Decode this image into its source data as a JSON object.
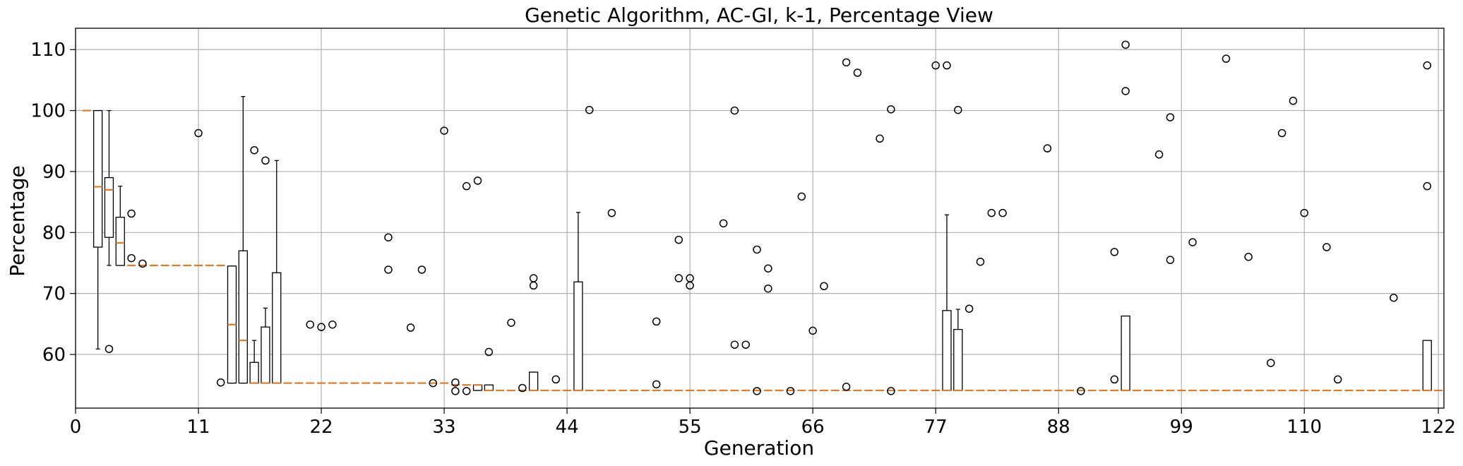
{
  "chart_data": {
    "type": "box",
    "title": "Genetic Algorithm, AC-GI, k-1, Percentage View",
    "xlabel": "Generation",
    "ylabel": "Percentage",
    "xlim": [
      0,
      122.5
    ],
    "ylim": [
      51.2,
      113.5
    ],
    "xticks": [
      0,
      11,
      22,
      33,
      44,
      55,
      66,
      77,
      88,
      99,
      110,
      122
    ],
    "yticks": [
      60,
      70,
      80,
      90,
      100,
      110
    ],
    "grid": true,
    "colors": {
      "box": "#000000",
      "median": "#e07b27",
      "grid": "#b0b0b0"
    },
    "boxes": [
      {
        "x": 2,
        "q1": 77.6,
        "q3": 100,
        "median": 87.5,
        "whisker_low": 60.9,
        "whisker_high": 100
      },
      {
        "x": 3,
        "q1": 79.2,
        "q3": 89.0,
        "median": 87.0,
        "whisker_low": 74.6,
        "whisker_high": 100
      },
      {
        "x": 4,
        "q1": 74.6,
        "q3": 82.5,
        "median": 78.3,
        "whisker_low": 74.6,
        "whisker_high": 87.6
      },
      {
        "x": 14,
        "q1": 55.3,
        "q3": 74.5,
        "median": 64.9,
        "whisker_low": 55.3,
        "whisker_high": 74.5
      },
      {
        "x": 15,
        "q1": 55.3,
        "q3": 77.0,
        "median": 62.3,
        "whisker_low": 55.3,
        "whisker_high": 102.3
      },
      {
        "x": 16,
        "q1": 55.3,
        "q3": 58.7,
        "median": 55.3,
        "whisker_low": 55.3,
        "whisker_high": 62.3
      },
      {
        "x": 17,
        "q1": 55.3,
        "q3": 64.5,
        "median": 55.3,
        "whisker_low": 55.3,
        "whisker_high": 67.6
      },
      {
        "x": 18,
        "q1": 55.3,
        "q3": 73.4,
        "median": 55.3,
        "whisker_low": 55.3,
        "whisker_high": 91.8
      },
      {
        "x": 36,
        "q1": 54.1,
        "q3": 55.0,
        "median": 55.0,
        "whisker_low": 54.1,
        "whisker_high": 55.0
      },
      {
        "x": 37,
        "q1": 54.1,
        "q3": 55.0,
        "median": 54.1,
        "whisker_low": 54.1,
        "whisker_high": 55.0
      },
      {
        "x": 41,
        "q1": 54.1,
        "q3": 57.1,
        "median": 54.1,
        "whisker_low": 54.1,
        "whisker_high": 57.1
      },
      {
        "x": 45,
        "q1": 54.1,
        "q3": 71.9,
        "median": 54.1,
        "whisker_low": 54.1,
        "whisker_high": 83.3
      },
      {
        "x": 78,
        "q1": 54.1,
        "q3": 67.2,
        "median": 54.1,
        "whisker_low": 54.1,
        "whisker_high": 82.9
      },
      {
        "x": 79,
        "q1": 54.1,
        "q3": 64.1,
        "median": 54.1,
        "whisker_low": 54.1,
        "whisker_high": 67.4
      },
      {
        "x": 94,
        "q1": 54.1,
        "q3": 66.3,
        "median": 54.1,
        "whisker_low": 54.1,
        "whisker_high": 66.3
      },
      {
        "x": 121,
        "q1": 54.1,
        "q3": 62.3,
        "median": 54.1,
        "whisker_low": 54.1,
        "whisker_high": 62.3
      }
    ],
    "flat_medians": [
      {
        "x": 1,
        "value": 100
      },
      {
        "x": 5,
        "value": 74.6
      },
      {
        "x": 6,
        "value": 74.6
      },
      {
        "x": 7,
        "value": 74.6
      },
      {
        "x": 8,
        "value": 74.6
      },
      {
        "x": 9,
        "value": 74.6
      },
      {
        "x": 10,
        "value": 74.6
      },
      {
        "x": 11,
        "value": 74.6
      },
      {
        "x": 12,
        "value": 74.6
      },
      {
        "x": 13,
        "value": 74.6
      },
      {
        "x": 19,
        "value": 55.3
      },
      {
        "x": 20,
        "value": 55.3
      },
      {
        "x": 21,
        "value": 55.3
      },
      {
        "x": 22,
        "value": 55.3
      },
      {
        "x": 23,
        "value": 55.3
      },
      {
        "x": 24,
        "value": 55.3
      },
      {
        "x": 25,
        "value": 55.3
      },
      {
        "x": 26,
        "value": 55.3
      },
      {
        "x": 27,
        "value": 55.3
      },
      {
        "x": 28,
        "value": 55.3
      },
      {
        "x": 29,
        "value": 55.3
      },
      {
        "x": 30,
        "value": 55.3
      },
      {
        "x": 31,
        "value": 55.3
      },
      {
        "x": 32,
        "value": 55.3
      },
      {
        "x": 33,
        "value": 55.3
      },
      {
        "x": 34,
        "value": 55.0
      },
      {
        "x": 35,
        "value": 55.0
      },
      {
        "x": 38,
        "value": 54.1
      },
      {
        "x": 39,
        "value": 54.1
      },
      {
        "x": 40,
        "value": 54.1
      },
      {
        "x": 42,
        "value": 54.1
      },
      {
        "x": 43,
        "value": 54.1
      },
      {
        "x": 44,
        "value": 54.1
      },
      {
        "x": 46,
        "value": 54.1
      },
      {
        "x": 47,
        "value": 54.1
      },
      {
        "x": 48,
        "value": 54.1
      },
      {
        "x": 49,
        "value": 54.1
      },
      {
        "x": 50,
        "value": 54.1
      },
      {
        "x": 51,
        "value": 54.1
      },
      {
        "x": 52,
        "value": 54.1
      },
      {
        "x": 53,
        "value": 54.1
      },
      {
        "x": 54,
        "value": 54.1
      },
      {
        "x": 55,
        "value": 54.1
      },
      {
        "x": 56,
        "value": 54.1
      },
      {
        "x": 57,
        "value": 54.1
      },
      {
        "x": 58,
        "value": 54.1
      },
      {
        "x": 59,
        "value": 54.1
      },
      {
        "x": 60,
        "value": 54.1
      },
      {
        "x": 61,
        "value": 54.1
      },
      {
        "x": 62,
        "value": 54.1
      },
      {
        "x": 63,
        "value": 54.1
      },
      {
        "x": 64,
        "value": 54.1
      },
      {
        "x": 65,
        "value": 54.1
      },
      {
        "x": 66,
        "value": 54.1
      },
      {
        "x": 67,
        "value": 54.1
      },
      {
        "x": 68,
        "value": 54.1
      },
      {
        "x": 69,
        "value": 54.1
      },
      {
        "x": 70,
        "value": 54.1
      },
      {
        "x": 71,
        "value": 54.1
      },
      {
        "x": 72,
        "value": 54.1
      },
      {
        "x": 73,
        "value": 54.1
      },
      {
        "x": 74,
        "value": 54.1
      },
      {
        "x": 75,
        "value": 54.1
      },
      {
        "x": 76,
        "value": 54.1
      },
      {
        "x": 77,
        "value": 54.1
      },
      {
        "x": 80,
        "value": 54.1
      },
      {
        "x": 81,
        "value": 54.1
      },
      {
        "x": 82,
        "value": 54.1
      },
      {
        "x": 83,
        "value": 54.1
      },
      {
        "x": 84,
        "value": 54.1
      },
      {
        "x": 85,
        "value": 54.1
      },
      {
        "x": 86,
        "value": 54.1
      },
      {
        "x": 87,
        "value": 54.1
      },
      {
        "x": 88,
        "value": 54.1
      },
      {
        "x": 89,
        "value": 54.1
      },
      {
        "x": 90,
        "value": 54.1
      },
      {
        "x": 91,
        "value": 54.1
      },
      {
        "x": 92,
        "value": 54.1
      },
      {
        "x": 93,
        "value": 54.1
      },
      {
        "x": 95,
        "value": 54.1
      },
      {
        "x": 96,
        "value": 54.1
      },
      {
        "x": 97,
        "value": 54.1
      },
      {
        "x": 98,
        "value": 54.1
      },
      {
        "x": 99,
        "value": 54.1
      },
      {
        "x": 100,
        "value": 54.1
      },
      {
        "x": 101,
        "value": 54.1
      },
      {
        "x": 102,
        "value": 54.1
      },
      {
        "x": 103,
        "value": 54.1
      },
      {
        "x": 104,
        "value": 54.1
      },
      {
        "x": 105,
        "value": 54.1
      },
      {
        "x": 106,
        "value": 54.1
      },
      {
        "x": 107,
        "value": 54.1
      },
      {
        "x": 108,
        "value": 54.1
      },
      {
        "x": 109,
        "value": 54.1
      },
      {
        "x": 110,
        "value": 54.1
      },
      {
        "x": 111,
        "value": 54.1
      },
      {
        "x": 112,
        "value": 54.1
      },
      {
        "x": 113,
        "value": 54.1
      },
      {
        "x": 114,
        "value": 54.1
      },
      {
        "x": 115,
        "value": 54.1
      },
      {
        "x": 116,
        "value": 54.1
      },
      {
        "x": 117,
        "value": 54.1
      },
      {
        "x": 118,
        "value": 54.1
      },
      {
        "x": 119,
        "value": 54.1
      },
      {
        "x": 120,
        "value": 54.1
      },
      {
        "x": 122,
        "value": 54.1
      }
    ],
    "outliers": [
      {
        "x": 3,
        "y": 60.9
      },
      {
        "x": 5,
        "y": 83.1
      },
      {
        "x": 5,
        "y": 75.8
      },
      {
        "x": 6,
        "y": 74.9
      },
      {
        "x": 11,
        "y": 96.3
      },
      {
        "x": 13,
        "y": 55.4
      },
      {
        "x": 16,
        "y": 93.5
      },
      {
        "x": 17,
        "y": 91.8
      },
      {
        "x": 21,
        "y": 64.9
      },
      {
        "x": 22,
        "y": 64.5
      },
      {
        "x": 23,
        "y": 64.9
      },
      {
        "x": 28,
        "y": 79.2
      },
      {
        "x": 28,
        "y": 73.9
      },
      {
        "x": 30,
        "y": 64.4
      },
      {
        "x": 31,
        "y": 73.9
      },
      {
        "x": 33,
        "y": 96.7
      },
      {
        "x": 32,
        "y": 55.3
      },
      {
        "x": 34,
        "y": 55.4
      },
      {
        "x": 34,
        "y": 54.0
      },
      {
        "x": 35,
        "y": 54.0
      },
      {
        "x": 35,
        "y": 87.6
      },
      {
        "x": 36,
        "y": 88.5
      },
      {
        "x": 37,
        "y": 60.4
      },
      {
        "x": 39,
        "y": 65.2
      },
      {
        "x": 40,
        "y": 54.5
      },
      {
        "x": 41,
        "y": 72.5
      },
      {
        "x": 41,
        "y": 71.3
      },
      {
        "x": 43,
        "y": 55.9
      },
      {
        "x": 46,
        "y": 100.1
      },
      {
        "x": 48,
        "y": 83.2
      },
      {
        "x": 52,
        "y": 65.4
      },
      {
        "x": 52,
        "y": 55.1
      },
      {
        "x": 54,
        "y": 78.8
      },
      {
        "x": 54,
        "y": 72.5
      },
      {
        "x": 55,
        "y": 72.5
      },
      {
        "x": 55,
        "y": 71.3
      },
      {
        "x": 58,
        "y": 81.5
      },
      {
        "x": 59,
        "y": 100.0
      },
      {
        "x": 59,
        "y": 61.6
      },
      {
        "x": 60,
        "y": 61.6
      },
      {
        "x": 61,
        "y": 77.2
      },
      {
        "x": 61,
        "y": 54.0
      },
      {
        "x": 62,
        "y": 74.1
      },
      {
        "x": 62,
        "y": 70.8
      },
      {
        "x": 64,
        "y": 54.0
      },
      {
        "x": 65,
        "y": 85.9
      },
      {
        "x": 66,
        "y": 63.9
      },
      {
        "x": 67,
        "y": 71.2
      },
      {
        "x": 69,
        "y": 107.9
      },
      {
        "x": 69,
        "y": 54.7
      },
      {
        "x": 70,
        "y": 106.2
      },
      {
        "x": 72,
        "y": 95.4
      },
      {
        "x": 73,
        "y": 100.2
      },
      {
        "x": 73,
        "y": 54.0
      },
      {
        "x": 77,
        "y": 107.4
      },
      {
        "x": 78,
        "y": 107.4
      },
      {
        "x": 79,
        "y": 100.1
      },
      {
        "x": 80,
        "y": 67.5
      },
      {
        "x": 81,
        "y": 75.2
      },
      {
        "x": 82,
        "y": 83.2
      },
      {
        "x": 83,
        "y": 83.2
      },
      {
        "x": 87,
        "y": 93.8
      },
      {
        "x": 90,
        "y": 54.0
      },
      {
        "x": 93,
        "y": 76.8
      },
      {
        "x": 93,
        "y": 55.9
      },
      {
        "x": 94,
        "y": 110.8
      },
      {
        "x": 94,
        "y": 103.2
      },
      {
        "x": 97,
        "y": 92.8
      },
      {
        "x": 98,
        "y": 98.9
      },
      {
        "x": 98,
        "y": 75.5
      },
      {
        "x": 100,
        "y": 78.4
      },
      {
        "x": 103,
        "y": 108.5
      },
      {
        "x": 105,
        "y": 76.0
      },
      {
        "x": 107,
        "y": 58.6
      },
      {
        "x": 108,
        "y": 96.3
      },
      {
        "x": 109,
        "y": 101.6
      },
      {
        "x": 110,
        "y": 83.2
      },
      {
        "x": 112,
        "y": 77.6
      },
      {
        "x": 113,
        "y": 55.9
      },
      {
        "x": 118,
        "y": 69.3
      },
      {
        "x": 121,
        "y": 107.4
      },
      {
        "x": 121,
        "y": 87.6
      }
    ]
  }
}
